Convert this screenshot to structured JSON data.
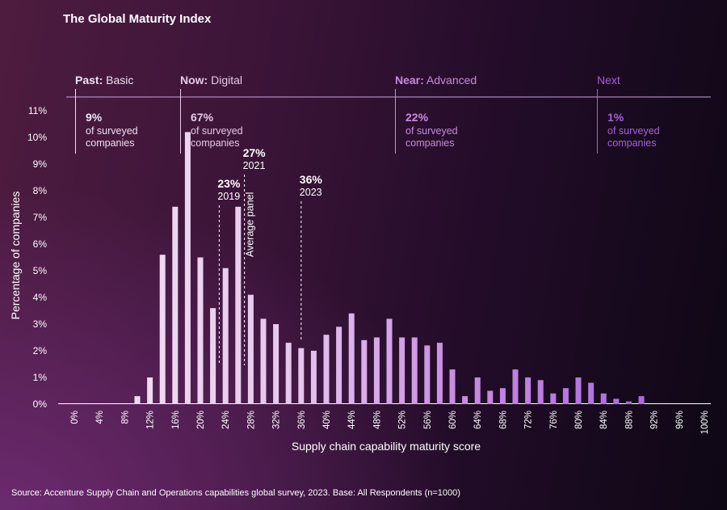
{
  "chart_data": {
    "type": "bar",
    "title": "The Global Maturity Index",
    "xlabel": "Supply chain capability maturity score",
    "ylabel": "Percentage of companies",
    "ylim": [
      0,
      11
    ],
    "xlim": [
      0,
      100
    ],
    "yticks": [
      "0%",
      "1%",
      "2%",
      "3%",
      "4%",
      "5%",
      "6%",
      "7%",
      "8%",
      "9%",
      "10%",
      "11%"
    ],
    "xticks": [
      "0%",
      "4%",
      "8%",
      "12%",
      "16%",
      "20%",
      "24%",
      "28%",
      "32%",
      "36%",
      "40%",
      "44%",
      "48%",
      "52%",
      "56%",
      "60%",
      "64%",
      "68%",
      "72%",
      "76%",
      "80%",
      "84%",
      "88%",
      "92%",
      "96%",
      "100%"
    ],
    "x": [
      0,
      2,
      4,
      6,
      8,
      10,
      12,
      14,
      16,
      18,
      20,
      22,
      24,
      26,
      28,
      30,
      32,
      34,
      36,
      38,
      40,
      42,
      44,
      46,
      48,
      50,
      52,
      54,
      56,
      58,
      60,
      62,
      64,
      66,
      68,
      70,
      72,
      74,
      76,
      78,
      80,
      82,
      84,
      86,
      88,
      90,
      92,
      94,
      96,
      98,
      100
    ],
    "values": [
      0,
      0,
      0,
      0,
      0,
      0.3,
      1.0,
      5.6,
      7.4,
      10.2,
      5.5,
      3.6,
      5.1,
      7.4,
      4.1,
      3.2,
      3.0,
      2.3,
      2.1,
      2.0,
      2.6,
      2.9,
      3.4,
      2.4,
      2.5,
      3.2,
      2.5,
      2.5,
      2.2,
      2.3,
      1.3,
      0.3,
      1.0,
      0.5,
      0.6,
      1.3,
      1.0,
      0.9,
      0.4,
      0.6,
      1.0,
      0.8,
      0.4,
      0.2,
      0.1,
      0.3,
      0,
      0,
      0,
      0,
      0
    ],
    "phases": [
      {
        "prefix": "Past:",
        "name": "Basic",
        "percent": "9%",
        "line1": "of surveyed",
        "line2": "companies",
        "color": "#f0e2f3"
      },
      {
        "prefix": "Now:",
        "name": "Digital",
        "percent": "67%",
        "line1": "of surveyed",
        "line2": "companies",
        "color": "#e6c8ec"
      },
      {
        "prefix": "Near:",
        "name": "Advanced",
        "percent": "22%",
        "line1": "of surveyed",
        "line2": "companies",
        "color": "#c78cdc"
      },
      {
        "prefix": "",
        "name": "Next",
        "percent": "1%",
        "line1": "of surveyed",
        "line2": "companies",
        "color": "#a460d8"
      }
    ],
    "annotations": [
      {
        "x": 23,
        "value": "23%",
        "year": "2019"
      },
      {
        "x": 27,
        "value": "27%",
        "year": "2021"
      },
      {
        "x": 36,
        "value": "36%",
        "year": "2023"
      }
    ],
    "average_panel_label": "Average panel"
  },
  "source": "Source: Accenture Supply Chain and Operations capabilities global survey, 2023. Base: All Respondents (n=1000)"
}
